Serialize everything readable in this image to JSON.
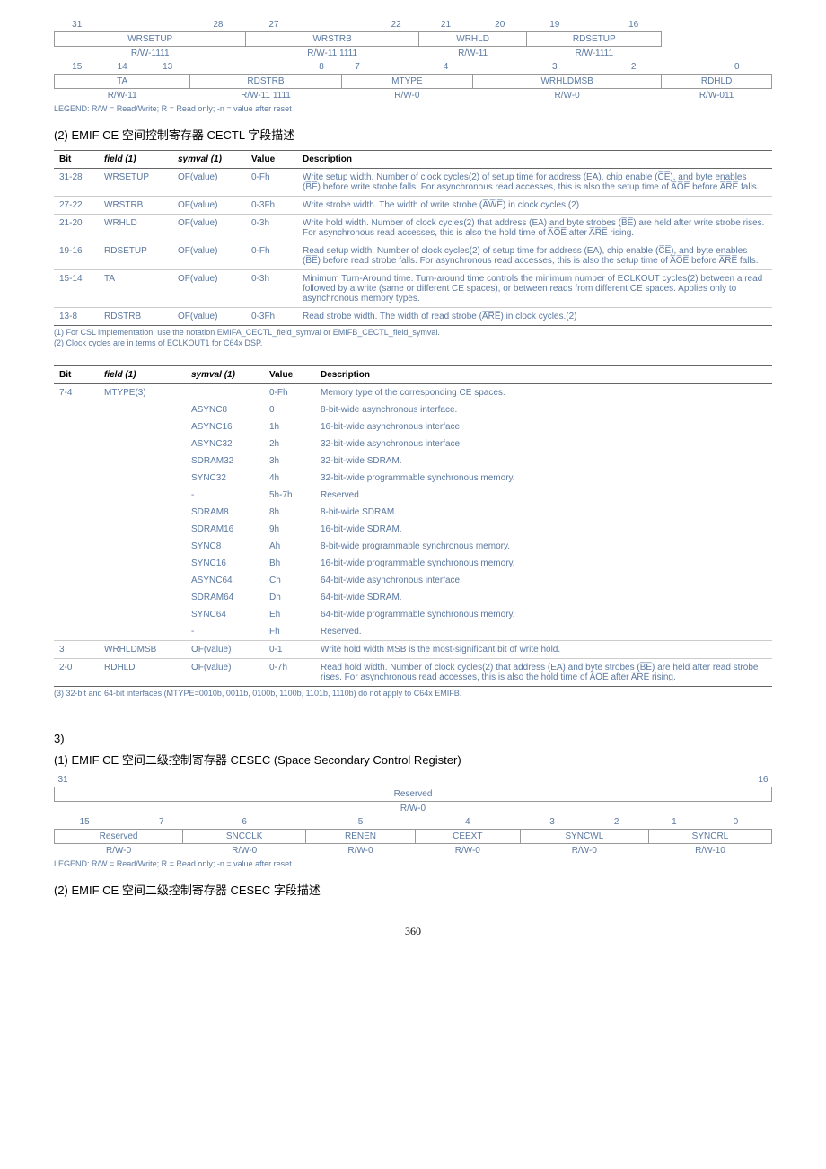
{
  "bittable1": {
    "head_row1": [
      "31",
      "",
      "",
      "28",
      "27",
      "",
      "",
      "22",
      "21",
      "20",
      "19",
      "",
      "16"
    ],
    "row1_fields": [
      {
        "label": "WRSETUP",
        "span": 4
      },
      {
        "label": "WRSTRB",
        "span": 4
      },
      {
        "label": "WRHLD",
        "span": 2
      },
      {
        "label": "RDSETUP",
        "span": 3
      }
    ],
    "row1_rw": [
      {
        "label": "R/W-1111",
        "span": 4
      },
      {
        "label": "R/W-11 1111",
        "span": 4
      },
      {
        "label": "R/W-11",
        "span": 2
      },
      {
        "label": "R/W-1111",
        "span": 3
      }
    ],
    "head_row2": [
      "15",
      "14",
      "13",
      "",
      "",
      "8",
      "7",
      "",
      "4",
      "",
      "3",
      "",
      "2",
      "",
      "0"
    ],
    "row2_fields": [
      {
        "label": "TA",
        "span": 3
      },
      {
        "label": "RDSTRB",
        "span": 3
      },
      {
        "label": "MTYPE",
        "span": 3
      },
      {
        "label": "WRHLDMSB",
        "span": 4
      },
      {
        "label": "RDHLD",
        "span": 2
      }
    ],
    "row2_rw": [
      {
        "label": "R/W-11",
        "span": 3
      },
      {
        "label": "R/W-11 1111",
        "span": 3
      },
      {
        "label": "R/W-0",
        "span": 3
      },
      {
        "label": "R/W-0",
        "span": 4
      },
      {
        "label": "R/W-011",
        "span": 2
      }
    ],
    "legend": "LEGEND: R/W = Read/Write; R = Read only; -n = value after reset"
  },
  "caption1": "(2) EMIF CE 空间控制寄存器 CECTL 字段描述",
  "table2": {
    "headers": [
      "Bit",
      "field (1)",
      "symval (1)",
      "Value",
      "Description"
    ],
    "rows": [
      {
        "bit": "31-28",
        "field": "WRSETUP",
        "sym": "OF(value)",
        "val": "0-Fh",
        "desc": "Write setup width. Number of clock cycles(2) of setup time for address (EA), chip enable (C̅E̅), and byte enables (B̅E̅) before write strobe falls. For asynchronous read accesses, this is also the setup time of A̅O̅E̅ before A̅R̅E̅ falls."
      },
      {
        "bit": "27-22",
        "field": "WRSTRB",
        "sym": "OF(value)",
        "val": "0-3Fh",
        "desc": "Write strobe width. The width of write strobe (A̅W̅E̅) in clock cycles.(2)"
      },
      {
        "bit": "21-20",
        "field": "WRHLD",
        "sym": "OF(value)",
        "val": "0-3h",
        "desc": "Write hold width. Number of clock cycles(2) that address (EA) and byte strobes (B̅E̅) are held after write strobe rises. For asynchronous read accesses, this is also the hold time of A̅O̅E̅ after A̅R̅E̅ rising."
      },
      {
        "bit": "19-16",
        "field": "RDSETUP",
        "sym": "OF(value)",
        "val": "0-Fh",
        "desc": "Read setup width. Number of clock cycles(2) of setup time for address (EA), chip enable (C̅E̅), and byte enables (B̅E̅) before read strobe falls. For asynchronous read accesses, this is also the setup time of A̅O̅E̅ before A̅R̅E̅ falls."
      },
      {
        "bit": "15-14",
        "field": "TA",
        "sym": "OF(value)",
        "val": "0-3h",
        "desc": "Minimum Turn-Around time. Turn-around time controls the minimum number of ECLKOUT cycles(2) between a read followed by a write (same or different CE spaces), or between reads from different CE spaces. Applies only to asynchronous memory types."
      },
      {
        "bit": "13-8",
        "field": "RDSTRB",
        "sym": "OF(value)",
        "val": "0-3Fh",
        "desc": "Read strobe width. The width of read strobe (A̅R̅E̅) in clock cycles.(2)"
      }
    ],
    "footnotes": [
      "(1)  For CSL implementation, use the notation EMIFA_CECTL_field_symval or EMIFB_CECTL_field_symval.",
      "(2)  Clock cycles are in terms of ECLKOUT1 for C64x DSP."
    ]
  },
  "table3": {
    "headers": [
      "Bit",
      "field (1)",
      "symval (1)",
      "Value",
      "Description"
    ],
    "rows": [
      {
        "bit": "7-4",
        "field": "MTYPE(3)",
        "sym": "",
        "val": "0-Fh",
        "desc": "Memory type of the corresponding CE spaces."
      },
      {
        "bit": "",
        "field": "",
        "sym": "ASYNC8",
        "val": "0",
        "desc": "8-bit-wide asynchronous interface."
      },
      {
        "bit": "",
        "field": "",
        "sym": "ASYNC16",
        "val": "1h",
        "desc": "16-bit-wide asynchronous interface."
      },
      {
        "bit": "",
        "field": "",
        "sym": "ASYNC32",
        "val": "2h",
        "desc": "32-bit-wide asynchronous interface."
      },
      {
        "bit": "",
        "field": "",
        "sym": "SDRAM32",
        "val": "3h",
        "desc": "32-bit-wide SDRAM."
      },
      {
        "bit": "",
        "field": "",
        "sym": "SYNC32",
        "val": "4h",
        "desc": "32-bit-wide programmable synchronous memory."
      },
      {
        "bit": "",
        "field": "",
        "sym": "-",
        "val": "5h-7h",
        "desc": "Reserved."
      },
      {
        "bit": "",
        "field": "",
        "sym": "SDRAM8",
        "val": "8h",
        "desc": "8-bit-wide SDRAM."
      },
      {
        "bit": "",
        "field": "",
        "sym": "SDRAM16",
        "val": "9h",
        "desc": "16-bit-wide SDRAM."
      },
      {
        "bit": "",
        "field": "",
        "sym": "SYNC8",
        "val": "Ah",
        "desc": "8-bit-wide programmable synchronous memory."
      },
      {
        "bit": "",
        "field": "",
        "sym": "SYNC16",
        "val": "Bh",
        "desc": "16-bit-wide programmable synchronous memory."
      },
      {
        "bit": "",
        "field": "",
        "sym": "ASYNC64",
        "val": "Ch",
        "desc": "64-bit-wide asynchronous interface."
      },
      {
        "bit": "",
        "field": "",
        "sym": "SDRAM64",
        "val": "Dh",
        "desc": "64-bit-wide SDRAM."
      },
      {
        "bit": "",
        "field": "",
        "sym": "SYNC64",
        "val": "Eh",
        "desc": "64-bit-wide programmable synchronous memory."
      },
      {
        "bit": "",
        "field": "",
        "sym": "-",
        "val": "Fh",
        "desc": "Reserved."
      },
      {
        "bit": "3",
        "field": "WRHLDMSB",
        "sym": "OF(value)",
        "val": "0-1",
        "desc": "Write hold width MSB is the most-significant bit of write hold."
      },
      {
        "bit": "2-0",
        "field": "RDHLD",
        "sym": "OF(value)",
        "val": "0-7h",
        "desc": "Read hold width. Number of clock cycles(2) that address (EA) and byte strobes (B̅E̅) are held after read strobe rises. For asynchronous read accesses, this is also the hold time of A̅O̅E̅ after A̅R̅E̅ rising."
      }
    ],
    "footnote3": "(3)  32-bit and 64-bit interfaces (MTYPE=0010b, 0011b, 0100b, 1100b, 1101b, 1110b) do not apply to C64x EMIFB."
  },
  "sec3": "3)",
  "caption2": "(1) EMIF CE  空间二级控制寄存器 CESEC (Space Secondary Control Register)",
  "bittable2": {
    "head_row1_left": "31",
    "head_row1_right": "16",
    "reserved_top": "Reserved",
    "rw_top": "R/W-0",
    "head_row2": [
      "15",
      "",
      "7",
      "6",
      "5",
      "4",
      "3",
      "2",
      "1",
      "0"
    ],
    "row2_fields": [
      {
        "label": "Reserved",
        "span": 3
      },
      {
        "label": "SNCCLK",
        "span": 1
      },
      {
        "label": "RENEN",
        "span": 1
      },
      {
        "label": "CEEXT",
        "span": 1
      },
      {
        "label": "SYNCWL",
        "span": 2
      },
      {
        "label": "SYNCRL",
        "span": 2
      }
    ],
    "row2_rw": [
      {
        "label": "R/W-0",
        "span": 3
      },
      {
        "label": "R/W-0",
        "span": 1
      },
      {
        "label": "R/W-0",
        "span": 1
      },
      {
        "label": "R/W-0",
        "span": 1
      },
      {
        "label": "R/W-0",
        "span": 2
      },
      {
        "label": "R/W-10",
        "span": 2
      }
    ],
    "legend": "LEGEND: R/W = Read/Write; R = Read only; -n = value after reset"
  },
  "caption3": "(2) EMIF CE  空间二级控制寄存器  CESEC 字段描述",
  "pagenum": "360"
}
